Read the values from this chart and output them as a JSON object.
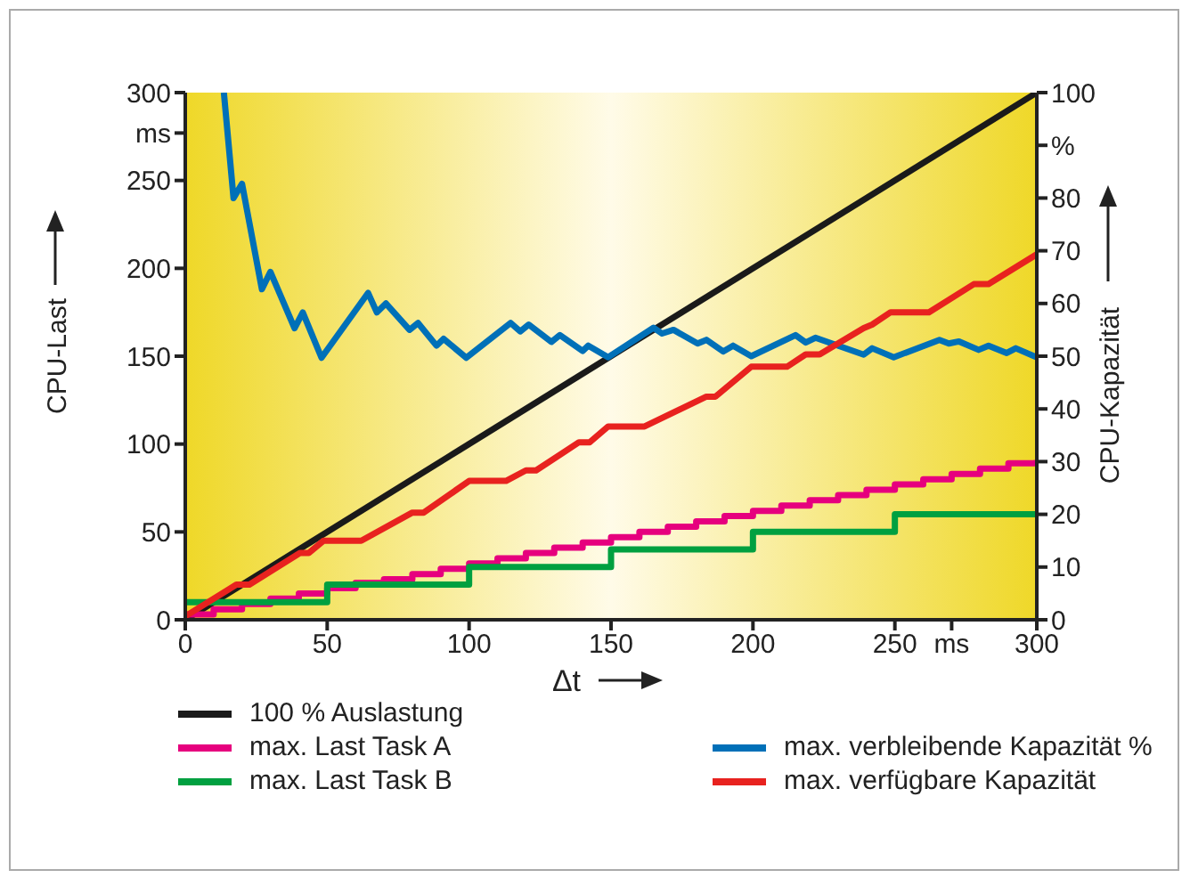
{
  "chart_data": {
    "type": "line",
    "xlabel": "Δt",
    "ylabel": "CPU-Last",
    "y2label": "CPU-Kapazität",
    "legend": "bottom",
    "xlim": [
      0,
      300
    ],
    "xticks": [
      0,
      50,
      100,
      150,
      200,
      250,
      {
        "value": 270,
        "label": "ms"
      },
      300
    ],
    "ylim": [
      0,
      300
    ],
    "yticks": [
      0,
      50,
      100,
      150,
      200,
      250,
      {
        "value": 277,
        "label": "ms"
      },
      300
    ],
    "y2lim": [
      0,
      100
    ],
    "y2ticks": [
      0,
      10,
      20,
      30,
      40,
      50,
      60,
      70,
      80,
      {
        "value": 90,
        "label": "%"
      },
      100
    ],
    "series": [
      {
        "name": "100 % Auslastung",
        "color": "#1a1a1a",
        "x": [
          0,
          300
        ],
        "values": [
          0,
          300
        ]
      },
      {
        "name": "max. Last Task A",
        "color": "#e6007e",
        "type": "step",
        "x": [
          0,
          10,
          20,
          30,
          40,
          50,
          60,
          70,
          80,
          90,
          100,
          110,
          120,
          130,
          140,
          150,
          160,
          170,
          180,
          190,
          200,
          210,
          220,
          230,
          240,
          250,
          260,
          270,
          280,
          290,
          300
        ],
        "values": [
          3,
          6,
          9,
          12,
          15,
          18,
          21,
          23,
          26,
          29,
          32,
          35,
          38,
          41,
          44,
          47,
          50,
          53,
          56,
          59,
          62,
          65,
          68,
          71,
          74,
          77,
          80,
          83,
          86,
          89,
          91
        ]
      },
      {
        "name": "max. Last Task B",
        "color": "#00a040",
        "type": "step",
        "x": [
          0,
          50,
          100,
          150,
          200,
          250,
          300
        ],
        "values": [
          10,
          20,
          30,
          40,
          50,
          60,
          60
        ]
      },
      {
        "name": "max. verbleibende Kapazität %",
        "color": "#0070b8",
        "axis": "y2",
        "x": [
          13.6,
          17,
          20,
          27,
          30,
          38.5,
          41.4,
          48,
          64.4,
          67.5,
          70.7,
          79,
          82,
          88.5,
          91,
          99,
          114.6,
          118,
          121,
          129,
          132,
          140,
          142,
          149,
          165,
          168,
          172,
          180.5,
          183.6,
          189.5,
          193,
          199.4,
          215,
          218.6,
          222,
          239,
          242,
          249.6,
          265.7,
          269,
          272.6,
          279.5,
          283,
          289.4,
          292.6,
          300
        ],
        "values": [
          100,
          80,
          82.7,
          62.7,
          66,
          55.3,
          58.3,
          49.7,
          62,
          58.3,
          60,
          55,
          56.3,
          52,
          53.3,
          49.7,
          56.3,
          54.7,
          56,
          52.7,
          54,
          51,
          52,
          49.8,
          55.4,
          54.3,
          55,
          52.4,
          53.1,
          50.9,
          52,
          50,
          54,
          52.6,
          53.5,
          50.3,
          51.5,
          49.8,
          53.1,
          52.4,
          52.8,
          51.2,
          52,
          50.6,
          51.5,
          49.8
        ]
      },
      {
        "name": "max. verfügbare Kapazität",
        "color": "#e8221f",
        "x": [
          0,
          18,
          22.6,
          40.4,
          43.5,
          48.7,
          62,
          80,
          84,
          100,
          113,
          120,
          123.6,
          138.7,
          142.5,
          149,
          161.8,
          183.6,
          186.8,
          199.4,
          212,
          218.6,
          223.5,
          239,
          242,
          248.5,
          262,
          277.8,
          283,
          300
        ],
        "values": [
          2,
          20,
          20,
          38,
          38,
          45,
          45,
          61,
          61,
          79,
          79,
          85,
          85,
          101,
          101,
          110,
          110,
          127,
          127,
          144,
          144,
          151,
          151,
          166,
          168,
          175,
          175,
          191,
          191,
          208
        ]
      }
    ]
  }
}
